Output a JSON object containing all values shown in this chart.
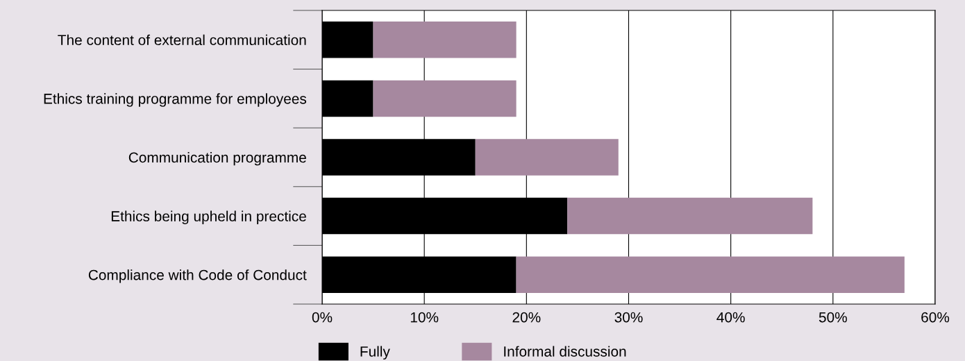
{
  "chart_data": {
    "type": "bar",
    "orientation": "horizontal",
    "stacked": true,
    "categories": [
      "The content of external communication",
      "Ethics training programme for employees",
      "Communication programme",
      "Ethics being upheld in prectice",
      "Compliance with Code of Conduct"
    ],
    "series": [
      {
        "name": "Fully",
        "color": "#000000",
        "values": [
          5,
          5,
          15,
          24,
          19
        ]
      },
      {
        "name": "Informal discussion",
        "color": "#a6889f",
        "values": [
          14,
          14,
          14,
          24,
          38
        ]
      }
    ],
    "xlim": [
      0,
      60
    ],
    "xticks": [
      {
        "value": 0,
        "label": "0%"
      },
      {
        "value": 10,
        "label": "10%"
      },
      {
        "value": 20,
        "label": "20%"
      },
      {
        "value": 30,
        "label": "30%"
      },
      {
        "value": 40,
        "label": "40%"
      },
      {
        "value": 50,
        "label": "50%"
      },
      {
        "value": 60,
        "label": "60%"
      }
    ],
    "grid": "x",
    "legend": "bottom"
  }
}
